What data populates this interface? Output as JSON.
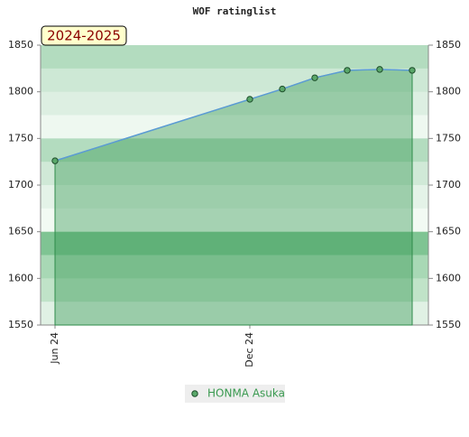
{
  "chart_data": {
    "type": "area",
    "title": "WOF ratinglist",
    "badge": "2024-2025",
    "x": [
      "2024-06",
      "2024-12",
      "2025-01",
      "2025-02",
      "2025-03",
      "2025-04",
      "2025-05"
    ],
    "xticks": [
      {
        "value": "2024-06",
        "label": "Jun 24"
      },
      {
        "value": "2024-12",
        "label": "Dec 24"
      }
    ],
    "series": [
      {
        "name": "HONMA Asuka",
        "color": "#5b9bd5",
        "values": [
          1726,
          1792,
          1803,
          1815,
          1823,
          1824,
          1823
        ]
      }
    ],
    "ylim": [
      1550,
      1850
    ],
    "yticks": [
      1550,
      1600,
      1650,
      1700,
      1750,
      1800,
      1850
    ],
    "y2lim": [
      1550,
      1850
    ],
    "y2ticks": [
      1550,
      1600,
      1650,
      1700,
      1750,
      1800,
      1850
    ]
  }
}
